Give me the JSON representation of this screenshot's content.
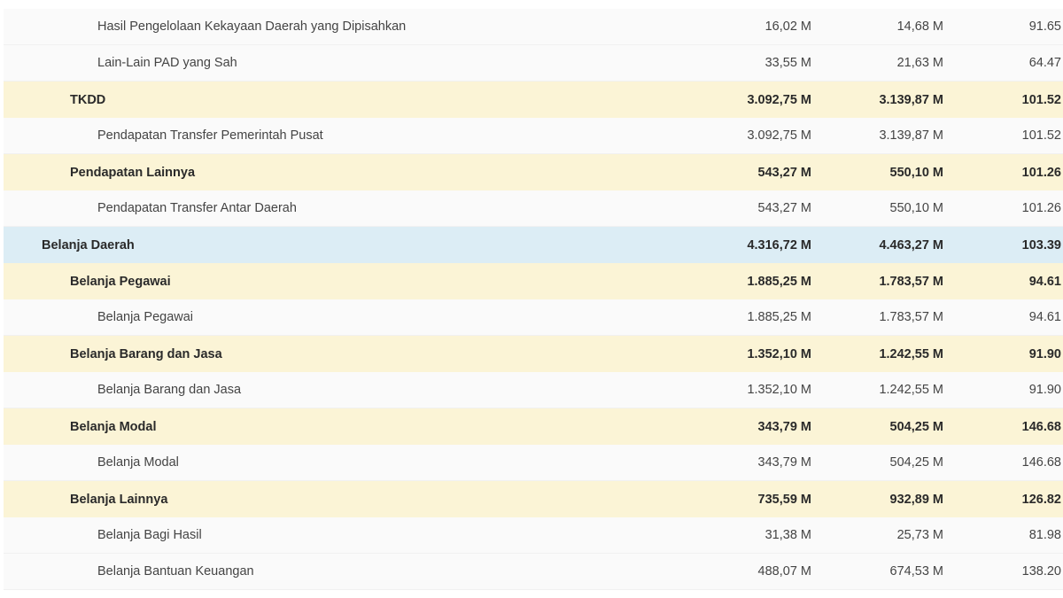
{
  "rows": [
    {
      "level": 2,
      "name": "Hasil Pengelolaan Kekayaan Daerah yang Dipisahkan",
      "col1": "16,02 M",
      "col2": "14,68 M",
      "col3": "91.65"
    },
    {
      "level": 2,
      "name": "Lain-Lain PAD yang Sah",
      "col1": "33,55 M",
      "col2": "21,63 M",
      "col3": "64.47"
    },
    {
      "level": 1,
      "name": "TKDD",
      "col1": "3.092,75 M",
      "col2": "3.139,87 M",
      "col3": "101.52"
    },
    {
      "level": 2,
      "name": "Pendapatan Transfer Pemerintah Pusat",
      "col1": "3.092,75 M",
      "col2": "3.139,87 M",
      "col3": "101.52"
    },
    {
      "level": 1,
      "name": "Pendapatan Lainnya",
      "col1": "543,27 M",
      "col2": "550,10 M",
      "col3": "101.26"
    },
    {
      "level": 2,
      "name": "Pendapatan Transfer Antar Daerah",
      "col1": "543,27 M",
      "col2": "550,10 M",
      "col3": "101.26"
    },
    {
      "level": 0,
      "name": "Belanja Daerah",
      "col1": "4.316,72 M",
      "col2": "4.463,27 M",
      "col3": "103.39"
    },
    {
      "level": 1,
      "name": "Belanja Pegawai",
      "col1": "1.885,25 M",
      "col2": "1.783,57 M",
      "col3": "94.61"
    },
    {
      "level": 2,
      "name": "Belanja Pegawai",
      "col1": "1.885,25 M",
      "col2": "1.783,57 M",
      "col3": "94.61"
    },
    {
      "level": 1,
      "name": "Belanja Barang dan Jasa",
      "col1": "1.352,10 M",
      "col2": "1.242,55 M",
      "col3": "91.90"
    },
    {
      "level": 2,
      "name": "Belanja Barang dan Jasa",
      "col1": "1.352,10 M",
      "col2": "1.242,55 M",
      "col3": "91.90"
    },
    {
      "level": 1,
      "name": "Belanja Modal",
      "col1": "343,79 M",
      "col2": "504,25 M",
      "col3": "146.68"
    },
    {
      "level": 2,
      "name": "Belanja Modal",
      "col1": "343,79 M",
      "col2": "504,25 M",
      "col3": "146.68"
    },
    {
      "level": 1,
      "name": "Belanja Lainnya",
      "col1": "735,59 M",
      "col2": "932,89 M",
      "col3": "126.82"
    },
    {
      "level": 2,
      "name": "Belanja Bagi Hasil",
      "col1": "31,38 M",
      "col2": "25,73 M",
      "col3": "81.98"
    },
    {
      "level": 2,
      "name": "Belanja Bantuan Keuangan",
      "col1": "488,07 M",
      "col2": "674,53 M",
      "col3": "138.20"
    }
  ]
}
